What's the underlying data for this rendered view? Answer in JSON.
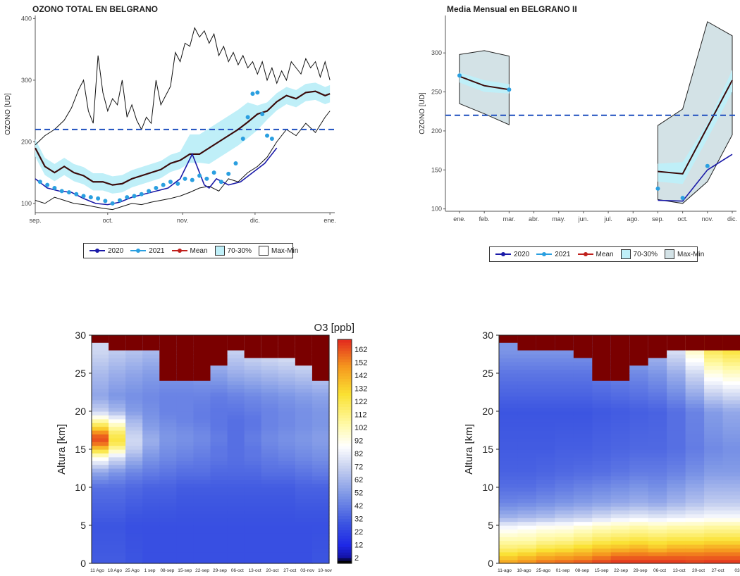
{
  "colors": {
    "c2020": "#1a1aa8",
    "c2021": "#2a9fe0",
    "mean": "#c0201c",
    "band": "#bfeff8",
    "maxmin_fill": "#d3e2e6",
    "ref": "#1e4fbf",
    "cap": "#7a0000"
  },
  "legend": {
    "items": [
      "2020",
      "2021",
      "Mean",
      "70-30%",
      "Max-Min"
    ]
  },
  "chart_data": [
    {
      "type": "line",
      "title": "OZONO TOTAL EN BELGRANO",
      "xlabel": "",
      "ylabel": "OZONO [UD]",
      "x_ticks": [
        "sep.",
        "oct.",
        "nov.",
        "dic.",
        "ene."
      ],
      "x_ticks_pos": [
        0,
        30,
        61,
        91,
        122
      ],
      "y_ticks": [
        100,
        200,
        300,
        400
      ],
      "xlim": [
        0,
        124
      ],
      "ylim": [
        85,
        405
      ],
      "reference_line": 220,
      "x_unit": "days since 1 sep",
      "series": [
        {
          "name": "Max-Min upper",
          "x": [
            0,
            4,
            8,
            12,
            15,
            18,
            20,
            22,
            24,
            26,
            28,
            30,
            32,
            34,
            36,
            38,
            40,
            42,
            44,
            46,
            48,
            50,
            52,
            54,
            56,
            58,
            60,
            62,
            64,
            66,
            68,
            70,
            72,
            74,
            76,
            78,
            80,
            82,
            84,
            86,
            88,
            90,
            92,
            94,
            96,
            98,
            100,
            102,
            104,
            106,
            108,
            110,
            112,
            114,
            116,
            118,
            120,
            122
          ],
          "y": [
            195,
            210,
            220,
            235,
            255,
            285,
            300,
            250,
            230,
            340,
            280,
            250,
            270,
            260,
            300,
            240,
            260,
            235,
            220,
            240,
            230,
            300,
            260,
            275,
            290,
            345,
            330,
            360,
            355,
            385,
            370,
            380,
            360,
            375,
            340,
            355,
            330,
            345,
            325,
            340,
            320,
            330,
            310,
            330,
            300,
            320,
            295,
            315,
            300,
            330,
            320,
            310,
            335,
            320,
            330,
            305,
            330,
            300
          ]
        },
        {
          "name": "Max-Min lower",
          "x": [
            0,
            4,
            8,
            12,
            16,
            20,
            24,
            28,
            32,
            36,
            40,
            44,
            48,
            52,
            56,
            60,
            64,
            68,
            72,
            76,
            80,
            84,
            88,
            92,
            96,
            100,
            104,
            108,
            112,
            116,
            120,
            122
          ],
          "y": [
            105,
            100,
            110,
            105,
            100,
            98,
            95,
            92,
            90,
            95,
            100,
            98,
            102,
            105,
            108,
            112,
            118,
            125,
            128,
            120,
            140,
            135,
            150,
            160,
            175,
            200,
            220,
            210,
            230,
            215,
            240,
            250
          ]
        },
        {
          "name": "Mean",
          "x": [
            0,
            4,
            8,
            12,
            16,
            20,
            24,
            28,
            32,
            36,
            40,
            44,
            48,
            52,
            56,
            60,
            64,
            68,
            72,
            76,
            80,
            84,
            88,
            92,
            96,
            100,
            104,
            108,
            112,
            116,
            120,
            122
          ],
          "y": [
            190,
            160,
            150,
            160,
            150,
            145,
            135,
            135,
            130,
            132,
            140,
            145,
            150,
            155,
            165,
            170,
            180,
            180,
            190,
            200,
            210,
            220,
            232,
            245,
            250,
            265,
            275,
            270,
            280,
            282,
            275,
            278
          ]
        },
        {
          "name": "2020",
          "x": [
            0,
            5,
            10,
            15,
            20,
            25,
            30,
            35,
            40,
            45,
            50,
            55,
            60,
            65,
            70,
            72,
            75,
            80,
            85,
            90,
            95,
            100
          ],
          "y": [
            140,
            125,
            120,
            118,
            108,
            100,
            98,
            102,
            110,
            115,
            120,
            125,
            140,
            180,
            130,
            125,
            140,
            130,
            135,
            150,
            165,
            190
          ]
        },
        {
          "name": "2021",
          "x": [
            2,
            5,
            8,
            11,
            14,
            17,
            20,
            23,
            26,
            29,
            32,
            35,
            38,
            41,
            44,
            47,
            50,
            53,
            56,
            59,
            62,
            65,
            68,
            71,
            74,
            77,
            80,
            83,
            86,
            88,
            90,
            92,
            94,
            96,
            98
          ],
          "y": [
            135,
            130,
            125,
            120,
            118,
            115,
            112,
            110,
            108,
            104,
            100,
            105,
            110,
            112,
            115,
            120,
            125,
            130,
            135,
            132,
            140,
            138,
            145,
            140,
            150,
            135,
            148,
            165,
            205,
            240,
            278,
            280,
            245,
            210,
            205
          ]
        }
      ]
    },
    {
      "type": "line",
      "title": "Media Mensual en BELGRANO II",
      "xlabel": "",
      "ylabel": "OZONO [UD]",
      "x_ticks": [
        "ene.",
        "feb.",
        "mar.",
        "abr.",
        "may.",
        "jun.",
        "jul.",
        "ago.",
        "sep.",
        "oct.",
        "nov.",
        "dic."
      ],
      "y_ticks": [
        100,
        150,
        200,
        250,
        300
      ],
      "ylim": [
        97,
        348
      ],
      "reference_line": 220,
      "series": [
        {
          "name": "Max",
          "x": [
            1,
            2,
            3,
            9,
            10,
            11,
            12
          ],
          "y": [
            298,
            303,
            296,
            207,
            228,
            340,
            322
          ]
        },
        {
          "name": "Min",
          "x": [
            1,
            2,
            3,
            9,
            10,
            11,
            12
          ],
          "y": [
            235,
            222,
            208,
            112,
            107,
            135,
            195
          ]
        },
        {
          "name": "P70",
          "x": [
            1,
            2,
            3,
            9,
            10,
            11,
            12
          ],
          "y": [
            275,
            265,
            260,
            158,
            160,
            210,
            278
          ]
        },
        {
          "name": "P30",
          "x": [
            1,
            2,
            3,
            9,
            10,
            11,
            12
          ],
          "y": [
            262,
            250,
            248,
            135,
            132,
            190,
            250
          ]
        },
        {
          "name": "Mean",
          "x": [
            1,
            2,
            3,
            9,
            10,
            11,
            12
          ],
          "y": [
            270,
            258,
            253,
            148,
            145,
            205,
            265
          ]
        },
        {
          "name": "2020",
          "x": [
            9,
            10,
            11,
            12
          ],
          "y": [
            111,
            110,
            150,
            170
          ]
        },
        {
          "name": "2021",
          "x": [
            1,
            3,
            9,
            10,
            11
          ],
          "y": [
            271,
            253,
            126,
            114,
            155
          ]
        }
      ]
    },
    {
      "type": "heatmap",
      "title": "",
      "colorbar_label": "O3 [ppb]",
      "ylabel": "Altura [km]",
      "y_ticks": [
        0,
        5,
        10,
        15,
        20,
        25,
        30
      ],
      "x_ticks": [
        "11 Ago",
        "18 Ago",
        "25 Ago",
        "1 sep",
        "08-sep",
        "15-sep",
        "22-sep",
        "29-sep",
        "06-oct",
        "13-oct",
        "20-oct",
        "27-oct",
        "03-nov",
        "10-nov"
      ],
      "colorbar_ticks": [
        2,
        12,
        22,
        32,
        42,
        52,
        62,
        72,
        82,
        92,
        102,
        112,
        122,
        132,
        142,
        152,
        162
      ],
      "profile_altitude_km": [
        0,
        5,
        10,
        12,
        14,
        15,
        16,
        17,
        18,
        19,
        20,
        22,
        25,
        28
      ],
      "profiles_ppb": [
        [
          32,
          30,
          38,
          55,
          90,
          125,
          155,
          150,
          120,
          95,
          70,
          55,
          62,
          72
        ],
        [
          32,
          30,
          38,
          50,
          75,
          100,
          120,
          115,
          100,
          82,
          62,
          50,
          58,
          68
        ],
        [
          30,
          28,
          36,
          45,
          60,
          68,
          72,
          70,
          65,
          60,
          52,
          48,
          55,
          65
        ],
        [
          28,
          28,
          34,
          42,
          50,
          54,
          58,
          56,
          52,
          50,
          48,
          46,
          52,
          62
        ],
        [
          28,
          28,
          34,
          40,
          46,
          48,
          50,
          50,
          48,
          46,
          44,
          44,
          50,
          60
        ],
        [
          28,
          28,
          32,
          38,
          44,
          46,
          48,
          48,
          46,
          44,
          44,
          44,
          50,
          60
        ],
        [
          28,
          28,
          32,
          38,
          42,
          44,
          46,
          46,
          44,
          42,
          42,
          44,
          52,
          62
        ],
        [
          28,
          28,
          32,
          36,
          40,
          40,
          42,
          42,
          40,
          40,
          40,
          42,
          54,
          66
        ],
        [
          28,
          28,
          32,
          36,
          38,
          38,
          38,
          38,
          38,
          38,
          40,
          44,
          58,
          70
        ],
        [
          28,
          28,
          32,
          36,
          40,
          40,
          42,
          42,
          40,
          40,
          42,
          46,
          60,
          74
        ],
        [
          28,
          28,
          32,
          38,
          42,
          44,
          46,
          46,
          44,
          44,
          44,
          48,
          62,
          76
        ],
        [
          28,
          28,
          32,
          38,
          44,
          46,
          48,
          48,
          46,
          46,
          46,
          50,
          64,
          78
        ],
        [
          28,
          28,
          34,
          40,
          46,
          48,
          50,
          50,
          48,
          48,
          48,
          52,
          66,
          80
        ],
        [
          30,
          28,
          34,
          42,
          48,
          50,
          52,
          52,
          50,
          50,
          50,
          54,
          68,
          82
        ]
      ],
      "cap_altitude_km": [
        29,
        28,
        28,
        28,
        24,
        24,
        24,
        26,
        28,
        27,
        27,
        27,
        26,
        24
      ]
    },
    {
      "type": "heatmap",
      "title": "",
      "ylabel": "Altura [km]",
      "y_ticks": [
        0,
        5,
        10,
        15,
        20,
        25,
        30
      ],
      "x_ticks": [
        "11-ago",
        "18-ago",
        "25-ago",
        "01-sep",
        "08-sep",
        "15-sep",
        "22-sep",
        "29-sep",
        "06-oct",
        "13-oct",
        "20-oct",
        "27-oct",
        "03"
      ],
      "profile_altitude_km": [
        0,
        1,
        2,
        3,
        4,
        5,
        6,
        8,
        10,
        12,
        15,
        20,
        25,
        28
      ],
      "profiles_ppb": [
        [
          140,
          125,
          110,
          100,
          90,
          80,
          60,
          45,
          38,
          34,
          32,
          30,
          40,
          50
        ],
        [
          145,
          130,
          112,
          100,
          92,
          82,
          62,
          46,
          38,
          34,
          32,
          30,
          40,
          50
        ],
        [
          150,
          135,
          118,
          104,
          95,
          85,
          64,
          48,
          40,
          35,
          32,
          30,
          40,
          50
        ],
        [
          152,
          138,
          120,
          106,
          96,
          86,
          68,
          50,
          42,
          36,
          33,
          30,
          40,
          50
        ],
        [
          155,
          140,
          125,
          110,
          100,
          90,
          70,
          52,
          44,
          37,
          33,
          30,
          40,
          50
        ],
        [
          158,
          145,
          130,
          115,
          104,
          94,
          74,
          54,
          46,
          38,
          34,
          31,
          42,
          52
        ],
        [
          160,
          150,
          132,
          118,
          106,
          96,
          78,
          56,
          48,
          40,
          35,
          32,
          44,
          55
        ],
        [
          160,
          150,
          135,
          120,
          108,
          98,
          80,
          58,
          50,
          42,
          36,
          33,
          46,
          58
        ],
        [
          160,
          150,
          130,
          118,
          106,
          96,
          78,
          56,
          48,
          42,
          36,
          34,
          50,
          62
        ],
        [
          160,
          150,
          135,
          120,
          108,
          98,
          80,
          60,
          52,
          44,
          38,
          38,
          58,
          75
        ],
        [
          158,
          150,
          135,
          120,
          108,
          98,
          82,
          64,
          56,
          48,
          42,
          44,
          72,
          95
        ],
        [
          160,
          150,
          138,
          122,
          110,
          100,
          84,
          68,
          60,
          52,
          46,
          52,
          90,
          115
        ],
        [
          160,
          150,
          138,
          122,
          110,
          100,
          84,
          68,
          60,
          52,
          48,
          56,
          95,
          120
        ]
      ],
      "cap_altitude_km": [
        29,
        28,
        28,
        28,
        27,
        24,
        24,
        26,
        27,
        28,
        28,
        28,
        28
      ]
    }
  ]
}
